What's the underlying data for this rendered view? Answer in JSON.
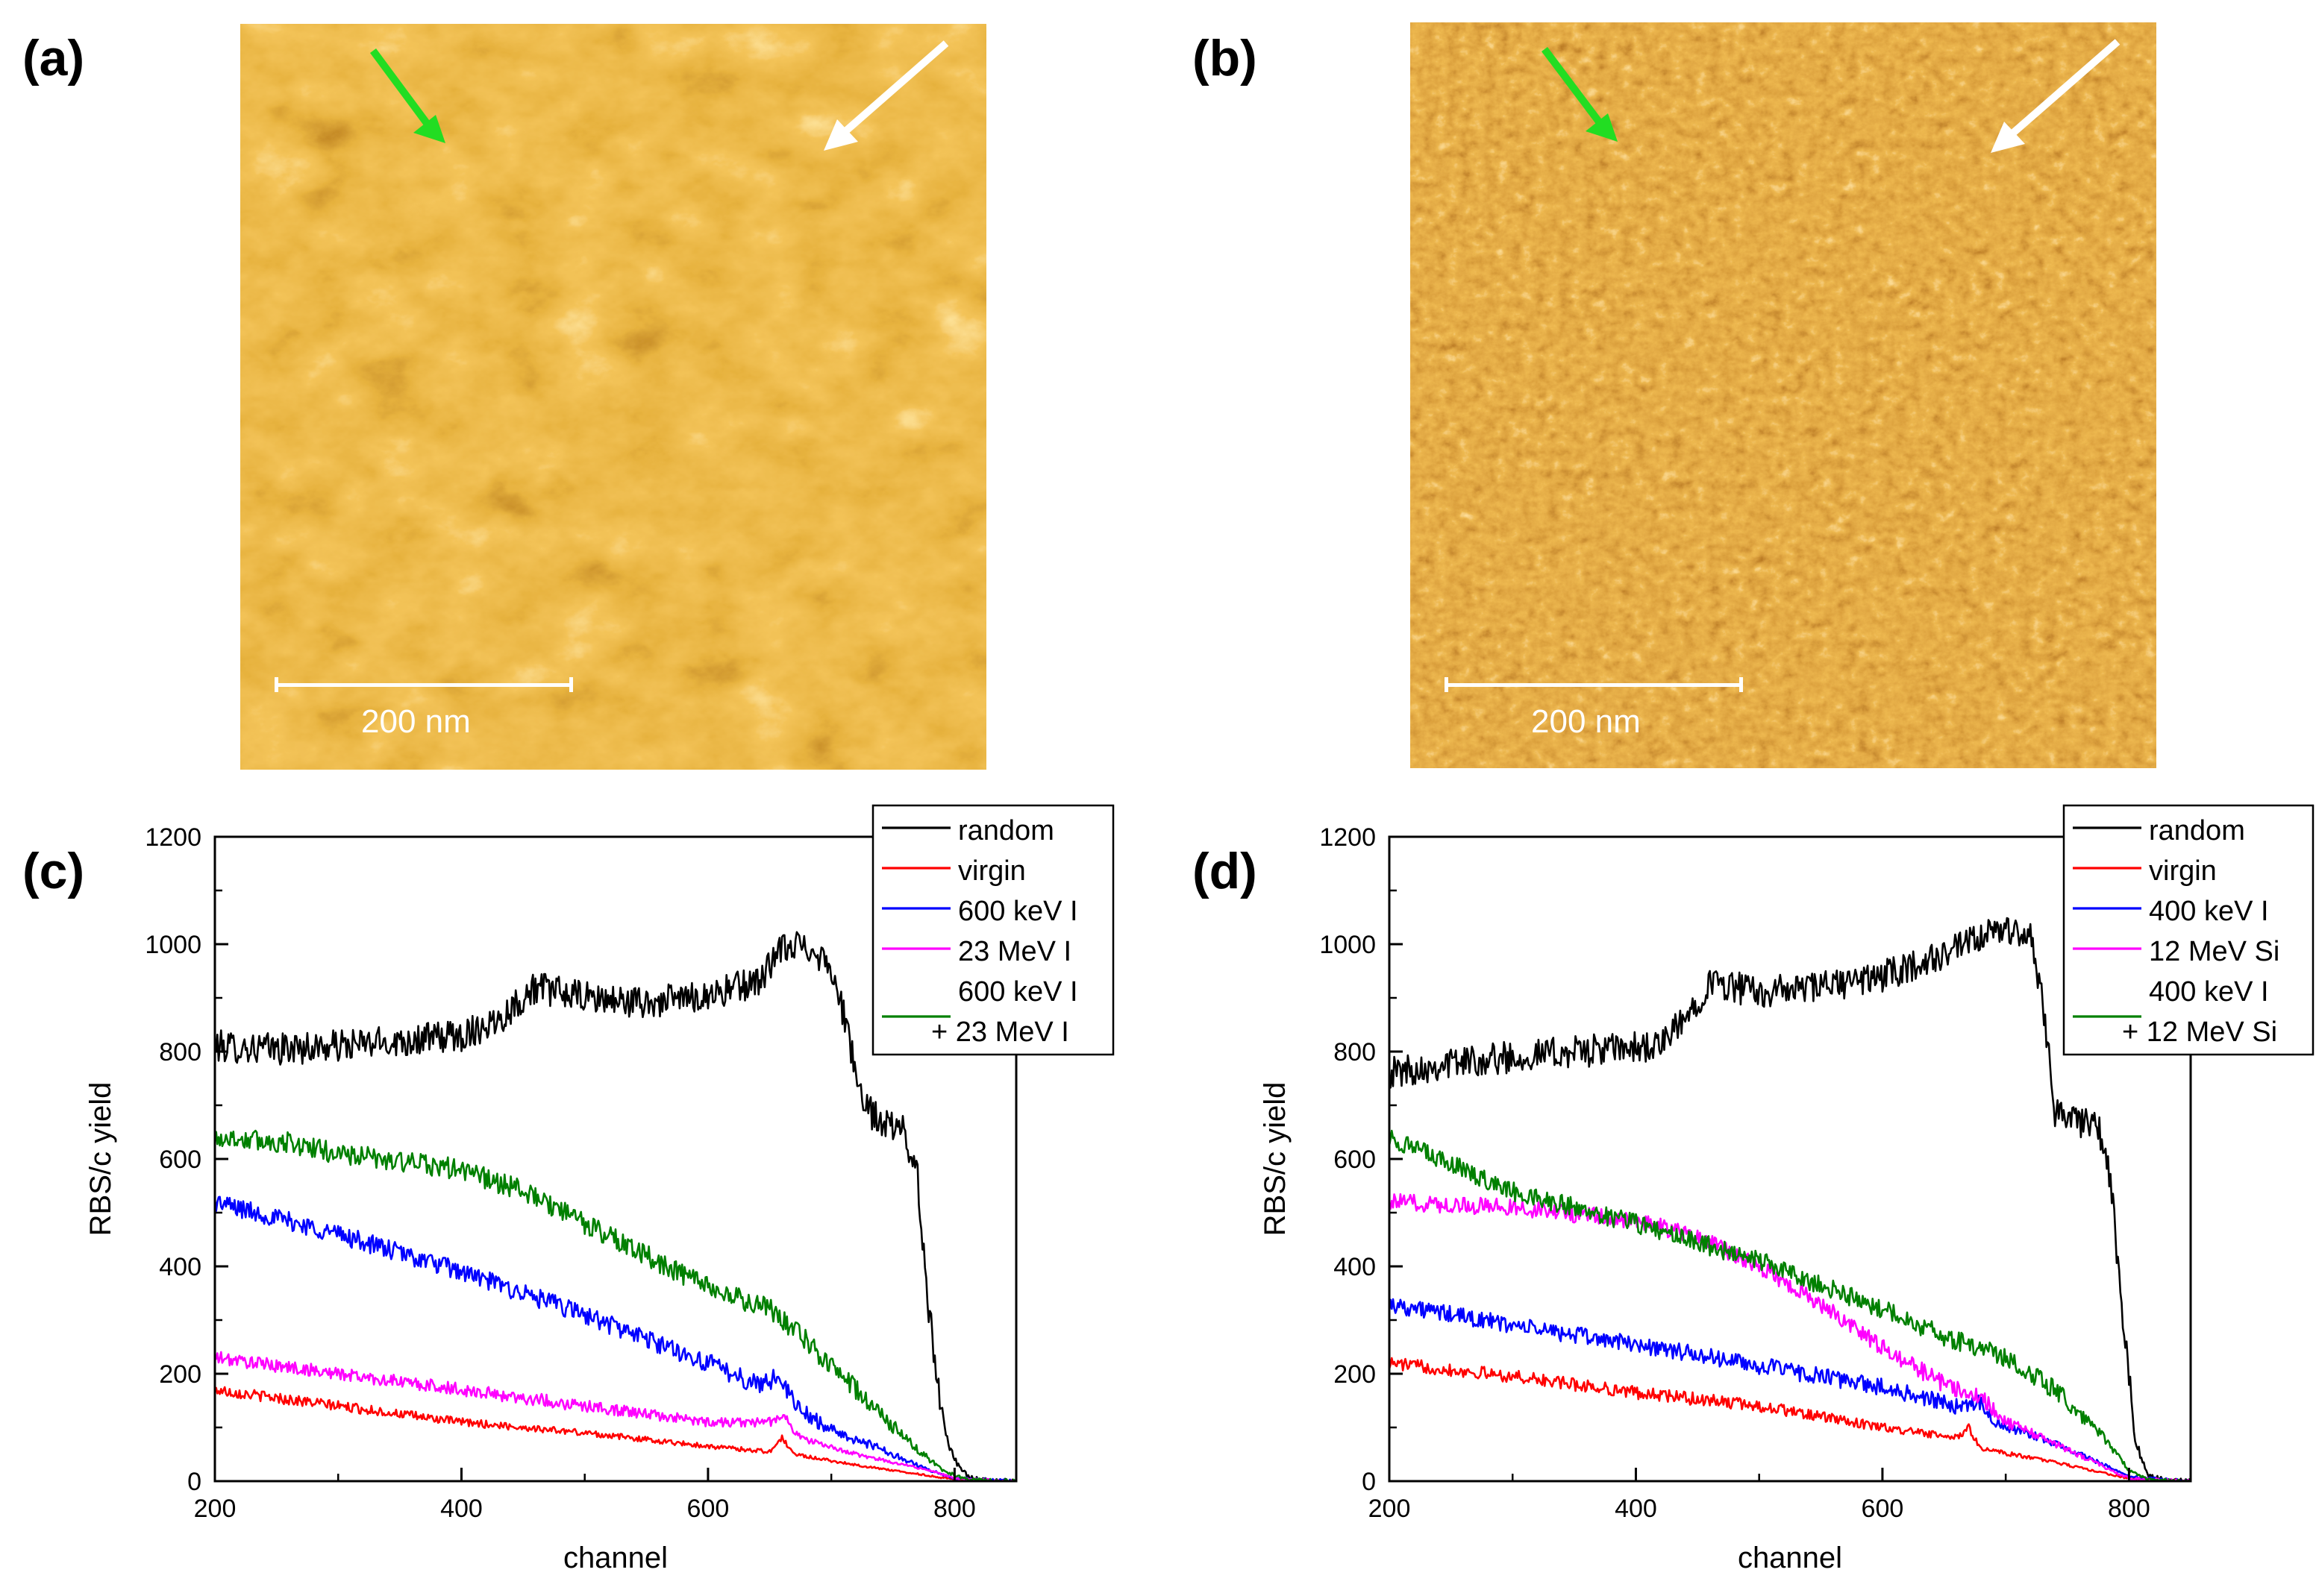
{
  "panels": {
    "a": {
      "label": "(a)",
      "scalebar": "200 nm"
    },
    "b": {
      "label": "(b)",
      "scalebar": "200 nm"
    },
    "c": {
      "label": "(c)"
    },
    "d": {
      "label": "(d)"
    }
  },
  "colors": {
    "random": "#000000",
    "virgin": "#ff0000",
    "blue": "#0000ff",
    "magenta": "#ff00ff",
    "green": "#008000",
    "arrow_green": "#22dd22",
    "arrow_white": "#ffffff"
  },
  "chart_data": [
    {
      "id": "c",
      "type": "line",
      "xlabel": "channel",
      "ylabel": "RBS/c yield",
      "xlim": [
        200,
        850
      ],
      "ylim": [
        0,
        1200
      ],
      "xticks": [
        200,
        400,
        600,
        800
      ],
      "yticks": [
        0,
        200,
        400,
        600,
        800,
        1000,
        1200
      ],
      "legend_position": "top-right",
      "series": [
        {
          "key": "random",
          "name": "random",
          "legend": [
            "random"
          ],
          "color": "#000000",
          "points": [
            [
              200,
              810
            ],
            [
              250,
              805
            ],
            [
              300,
              810
            ],
            [
              350,
              820
            ],
            [
              400,
              830
            ],
            [
              430,
              860
            ],
            [
              460,
              920
            ],
            [
              500,
              900
            ],
            [
              550,
              890
            ],
            [
              600,
              905
            ],
            [
              640,
              930
            ],
            [
              660,
              990
            ],
            [
              680,
              1000
            ],
            [
              700,
              960
            ],
            [
              715,
              820
            ],
            [
              725,
              700
            ],
            [
              740,
              670
            ],
            [
              760,
              650
            ],
            [
              770,
              560
            ],
            [
              780,
              300
            ],
            [
              790,
              120
            ],
            [
              800,
              40
            ],
            [
              810,
              10
            ],
            [
              820,
              2
            ],
            [
              850,
              0
            ]
          ],
          "noise": 30
        },
        {
          "key": "virgin",
          "name": "virgin",
          "legend": [
            "virgin"
          ],
          "color": "#ff0000",
          "points": [
            [
              200,
              170
            ],
            [
              300,
              140
            ],
            [
              400,
              110
            ],
            [
              500,
              90
            ],
            [
              600,
              65
            ],
            [
              650,
              55
            ],
            [
              660,
              80
            ],
            [
              670,
              50
            ],
            [
              720,
              30
            ],
            [
              780,
              10
            ],
            [
              800,
              3
            ],
            [
              850,
              0
            ]
          ],
          "noise": 10
        },
        {
          "key": "i600",
          "name": "600 keV I",
          "legend": [
            "600 keV I"
          ],
          "color": "#0000ff",
          "points": [
            [
              200,
              520
            ],
            [
              300,
              460
            ],
            [
              400,
              390
            ],
            [
              500,
              310
            ],
            [
              600,
              220
            ],
            [
              640,
              180
            ],
            [
              660,
              195
            ],
            [
              670,
              140
            ],
            [
              700,
              95
            ],
            [
              740,
              60
            ],
            [
              780,
              20
            ],
            [
              800,
              5
            ],
            [
              850,
              0
            ]
          ],
          "noise": 18
        },
        {
          "key": "i23",
          "name": "23 MeV I",
          "legend": [
            "23 MeV I"
          ],
          "color": "#ff00ff",
          "points": [
            [
              200,
              230
            ],
            [
              300,
              200
            ],
            [
              400,
              170
            ],
            [
              500,
              140
            ],
            [
              600,
              110
            ],
            [
              650,
              110
            ],
            [
              660,
              125
            ],
            [
              675,
              80
            ],
            [
              720,
              50
            ],
            [
              780,
              20
            ],
            [
              800,
              5
            ],
            [
              850,
              0
            ]
          ],
          "noise": 12
        },
        {
          "key": "combo",
          "name": "600 keV I + 23 MeV I",
          "legend": [
            "600 keV I",
            "+ 23 MeV I"
          ],
          "color": "#008000",
          "points": [
            [
              200,
              640
            ],
            [
              260,
              630
            ],
            [
              300,
              610
            ],
            [
              400,
              580
            ],
            [
              450,
              540
            ],
            [
              500,
              480
            ],
            [
              550,
              420
            ],
            [
              600,
              360
            ],
            [
              650,
              320
            ],
            [
              680,
              260
            ],
            [
              720,
              170
            ],
            [
              760,
              80
            ],
            [
              790,
              20
            ],
            [
              810,
              3
            ],
            [
              850,
              0
            ]
          ],
          "noise": 20
        }
      ]
    },
    {
      "id": "d",
      "type": "line",
      "xlabel": "channel",
      "ylabel": "RBS/c yield",
      "xlim": [
        200,
        850
      ],
      "ylim": [
        0,
        1200
      ],
      "xticks": [
        200,
        400,
        600,
        800
      ],
      "yticks": [
        0,
        200,
        400,
        600,
        800,
        1000,
        1200
      ],
      "legend_position": "top-right",
      "series": [
        {
          "key": "random",
          "name": "random",
          "legend": [
            "random"
          ],
          "color": "#000000",
          "points": [
            [
              200,
              760
            ],
            [
              250,
              780
            ],
            [
              300,
              790
            ],
            [
              350,
              800
            ],
            [
              420,
              810
            ],
            [
              440,
              860
            ],
            [
              460,
              930
            ],
            [
              500,
              910
            ],
            [
              550,
              920
            ],
            [
              600,
              940
            ],
            [
              650,
              980
            ],
            [
              700,
              1030
            ],
            [
              720,
              1010
            ],
            [
              730,
              900
            ],
            [
              740,
              690
            ],
            [
              760,
              670
            ],
            [
              775,
              660
            ],
            [
              785,
              560
            ],
            [
              795,
              300
            ],
            [
              805,
              80
            ],
            [
              815,
              10
            ],
            [
              830,
              2
            ],
            [
              850,
              0
            ]
          ],
          "noise": 30
        },
        {
          "key": "virgin",
          "name": "virgin",
          "legend": [
            "virgin"
          ],
          "color": "#ff0000",
          "points": [
            [
              200,
              220
            ],
            [
              300,
              195
            ],
            [
              400,
              165
            ],
            [
              500,
              140
            ],
            [
              600,
              100
            ],
            [
              660,
              80
            ],
            [
              670,
              100
            ],
            [
              680,
              60
            ],
            [
              730,
              40
            ],
            [
              780,
              15
            ],
            [
              800,
              5
            ],
            [
              850,
              0
            ]
          ],
          "noise": 12
        },
        {
          "key": "i400",
          "name": "400 keV I",
          "legend": [
            "400 keV I"
          ],
          "color": "#0000ff",
          "points": [
            [
              200,
              330
            ],
            [
              300,
              290
            ],
            [
              400,
              255
            ],
            [
              500,
              215
            ],
            [
              600,
              175
            ],
            [
              660,
              140
            ],
            [
              680,
              150
            ],
            [
              690,
              110
            ],
            [
              740,
              70
            ],
            [
              780,
              30
            ],
            [
              800,
              8
            ],
            [
              850,
              0
            ]
          ],
          "noise": 16
        },
        {
          "key": "si12",
          "name": "12 MeV Si",
          "legend": [
            "12 MeV Si"
          ],
          "color": "#ff00ff",
          "points": [
            [
              200,
              520
            ],
            [
              300,
              510
            ],
            [
              400,
              485
            ],
            [
              450,
              455
            ],
            [
              500,
              400
            ],
            [
              550,
              330
            ],
            [
              600,
              250
            ],
            [
              650,
              180
            ],
            [
              680,
              160
            ],
            [
              700,
              110
            ],
            [
              750,
              60
            ],
            [
              790,
              15
            ],
            [
              800,
              5
            ],
            [
              850,
              0
            ]
          ],
          "noise": 16
        },
        {
          "key": "combo",
          "name": "400 keV I + 12 MeV Si",
          "legend": [
            "400 keV I",
            "+ 12 MeV Si"
          ],
          "color": "#008000",
          "points": [
            [
              200,
              640
            ],
            [
              250,
              590
            ],
            [
              300,
              540
            ],
            [
              400,
              480
            ],
            [
              500,
              410
            ],
            [
              600,
              320
            ],
            [
              650,
              270
            ],
            [
              700,
              230
            ],
            [
              740,
              170
            ],
            [
              780,
              80
            ],
            [
              800,
              20
            ],
            [
              815,
              3
            ],
            [
              850,
              0
            ]
          ],
          "noise": 18
        }
      ]
    }
  ]
}
